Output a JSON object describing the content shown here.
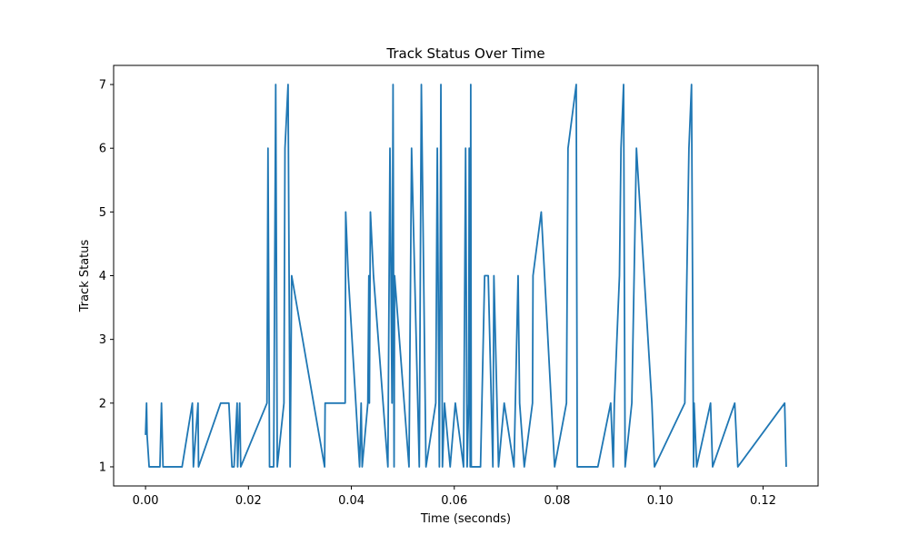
{
  "chart_data": {
    "type": "line",
    "title": "Track Status Over Time",
    "xlabel": "Time (seconds)",
    "ylabel": "Track Status",
    "xlim": [
      -0.0062,
      0.1307
    ],
    "ylim": [
      0.7,
      7.3
    ],
    "xticks": [
      0.0,
      0.02,
      0.04,
      0.06,
      0.08,
      0.1,
      0.12
    ],
    "xtick_labels": [
      "0.00",
      "0.02",
      "0.04",
      "0.06",
      "0.08",
      "0.10",
      "0.12"
    ],
    "yticks": [
      1,
      2,
      3,
      4,
      5,
      6,
      7
    ],
    "ytick_labels": [
      "1",
      "2",
      "3",
      "4",
      "5",
      "6",
      "7"
    ],
    "grid": false,
    "color": "#1f77b4",
    "series": [
      {
        "x": [
          0.0,
          0.0002,
          0.0003,
          0.0007,
          0.0028,
          0.0031,
          0.0034,
          0.0071,
          0.0091,
          0.0093,
          0.0102,
          0.0103,
          0.0146,
          0.0162,
          0.0168,
          0.0172,
          0.0178,
          0.0179,
          0.0183,
          0.0185,
          0.0236,
          0.0238,
          0.0241,
          0.0249,
          0.0253,
          0.0256,
          0.0269,
          0.0271,
          0.0277,
          0.0281,
          0.0284,
          0.0348,
          0.0349,
          0.0388,
          0.0389,
          0.0394,
          0.0416,
          0.0419,
          0.0421,
          0.0432,
          0.0434,
          0.0435,
          0.0437,
          0.0443,
          0.0471,
          0.0475,
          0.0479,
          0.0481,
          0.0483,
          0.0484,
          0.0512,
          0.0517,
          0.0532,
          0.0536,
          0.0545,
          0.0564,
          0.0567,
          0.0571,
          0.0574,
          0.0577,
          0.0581,
          0.0592,
          0.0602,
          0.0618,
          0.0622,
          0.0625,
          0.0628,
          0.0629,
          0.0631,
          0.0632,
          0.0633,
          0.0651,
          0.0659,
          0.0666,
          0.0675,
          0.0677,
          0.0686,
          0.0697,
          0.0716,
          0.0724,
          0.0727,
          0.0736,
          0.0752,
          0.0753,
          0.0769,
          0.0795,
          0.0818,
          0.0821,
          0.0837,
          0.0839,
          0.0879,
          0.0904,
          0.0909,
          0.0911,
          0.0921,
          0.0924,
          0.0929,
          0.0932,
          0.0945,
          0.0954,
          0.0984,
          0.0989,
          0.1048,
          0.1056,
          0.1061,
          0.1065,
          0.1066,
          0.1071,
          0.1098,
          0.1102,
          0.1145,
          0.1151,
          0.1242,
          0.1245
        ],
        "y": [
          1.5,
          2,
          1.5,
          1,
          1,
          2,
          1,
          1,
          2,
          1,
          2,
          1,
          2,
          2,
          1,
          1,
          2,
          1,
          2,
          1,
          2,
          6,
          1,
          1,
          7,
          1,
          2,
          6,
          7,
          1,
          4,
          1,
          2,
          2,
          5,
          4,
          1,
          2,
          1,
          2,
          4,
          2,
          5,
          4,
          1,
          6,
          2,
          7,
          1,
          4,
          1,
          6,
          1,
          7,
          1,
          2,
          6,
          1,
          7,
          1,
          2,
          1,
          2,
          1,
          6,
          1,
          2,
          6,
          1,
          7,
          1,
          1,
          4,
          4,
          1,
          4,
          1,
          2,
          1,
          4,
          2,
          1,
          2,
          4,
          5,
          1,
          2,
          6,
          7,
          1,
          1,
          2,
          1,
          2,
          4,
          6,
          7,
          1,
          2,
          6,
          2,
          1,
          2,
          6,
          7,
          1,
          2,
          1,
          2,
          1,
          2,
          1,
          2,
          1
        ]
      }
    ]
  }
}
